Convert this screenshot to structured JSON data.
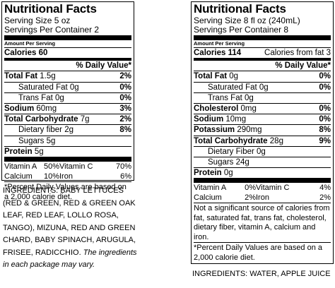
{
  "left": {
    "title": "Nutritional Facts",
    "serving_size": "Serving Size 5 oz",
    "servings_per_container": "Servings Per Container 2",
    "amount_per_serving": "Amount Per Serving",
    "calories": "Calories 60",
    "dv_header": "% Daily Value*",
    "rows": [
      {
        "label": "Total Fat",
        "amount": "1.5g",
        "dv": "2%",
        "indent": false
      },
      {
        "label": "Saturated Fat",
        "amount": "0g",
        "dv": "0%",
        "indent": true
      },
      {
        "label": "Trans Fat",
        "amount": "0g",
        "dv": "0%",
        "indent": true
      },
      {
        "label": "Sodium",
        "amount": "60mg",
        "dv": "3%",
        "indent": false
      },
      {
        "label": "Total Carbohydrate",
        "amount": "7g",
        "dv": "2%",
        "indent": false
      },
      {
        "label": "Dietary fiber",
        "amount": "2g",
        "dv": "8%",
        "indent": true
      },
      {
        "label": "Sugars",
        "amount": "5g",
        "dv": "",
        "indent": true
      },
      {
        "label": "Protein",
        "amount": "5g",
        "dv": "",
        "indent": false
      }
    ],
    "vitamins": [
      [
        "Vitamin A",
        "50%",
        "Vitamin C",
        "70%"
      ],
      [
        "Calcium",
        "10%",
        "Iron",
        "6%"
      ]
    ],
    "footnote": "*Percent Daily Values are based on a 2,000 calorie diet.",
    "ingredients": "INGREDIENTS: BABY LETTUCES (RED & GREEN, RED & GREEN OAK LEAF, RED LEAF, LOLLO ROSA, TANGO), MIZUNA, RED AND GREEN CHARD, BABY SPINACH, ARUGULA, FRISEE, RADICCHIO.",
    "ingredients_note": "The ingredients in each package may vary."
  },
  "right": {
    "title": "Nutritional Facts",
    "serving_size": "Serving Size 8 fl oz (240mL)",
    "servings_per_container": "Servings Per Container 8",
    "amount_per_serving": "Amount Per Serving",
    "calories": "Calories 114",
    "calories_from_fat": "Calories from fat 3",
    "dv_header": "% Daily Value*",
    "rows": [
      {
        "label": "Total Fat",
        "amount": "0g",
        "dv": "0%",
        "indent": false
      },
      {
        "label": "Saturated Fat",
        "amount": "0g",
        "dv": "0%",
        "indent": true
      },
      {
        "label": "Trans Fat",
        "amount": "0g",
        "dv": "",
        "indent": true
      },
      {
        "label": "Cholesterol",
        "amount": "0mg",
        "dv": "0%",
        "indent": false
      },
      {
        "label": "Sodium",
        "amount": "10mg",
        "dv": "0%",
        "indent": false
      },
      {
        "label": "Potassium",
        "amount": "290mg",
        "dv": "8%",
        "indent": false
      },
      {
        "label": "Total Carbohydrate",
        "amount": "28g",
        "dv": "9%",
        "indent": false
      },
      {
        "label": "Dietary Fiber",
        "amount": "0g",
        "dv": "",
        "indent": true
      },
      {
        "label": "Sugars",
        "amount": "24g",
        "dv": "",
        "indent": true
      },
      {
        "label": "Protein",
        "amount": "0g",
        "dv": "",
        "indent": false
      }
    ],
    "vitamins": [
      [
        "Vitamin A",
        "0%",
        "Vitamin C",
        "4%"
      ],
      [
        "Calcium",
        "2%",
        "Iron",
        "2%"
      ]
    ],
    "not_significant": "Not a significant source of calories from fat, saturated fat, trans fat, cholesterol, dietary fiber, vitamin A, calcium and iron.",
    "footnote": "*Percent Daily Values are based on a 2,000 calorie diet.",
    "ingredients": "INGREDIENTS:  WATER, APPLE JUICE"
  }
}
